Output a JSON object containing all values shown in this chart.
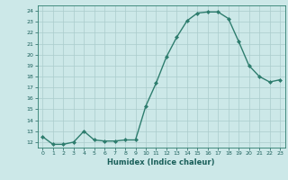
{
  "title": "",
  "xlabel": "Humidex (Indice chaleur)",
  "ylabel": "",
  "x": [
    0,
    1,
    2,
    3,
    4,
    5,
    6,
    7,
    8,
    9,
    10,
    11,
    12,
    13,
    14,
    15,
    16,
    17,
    18,
    19,
    20,
    21,
    22,
    23
  ],
  "y": [
    12.5,
    11.8,
    11.8,
    12.0,
    13.0,
    12.2,
    12.1,
    12.1,
    12.2,
    12.2,
    15.3,
    17.4,
    19.8,
    21.6,
    23.1,
    23.8,
    23.9,
    23.9,
    23.3,
    21.2,
    19.0,
    18.0,
    17.5,
    17.7
  ],
  "ylim": [
    11.5,
    24.5
  ],
  "xlim": [
    -0.5,
    23.5
  ],
  "yticks": [
    12,
    13,
    14,
    15,
    16,
    17,
    18,
    19,
    20,
    21,
    22,
    23,
    24
  ],
  "xticks": [
    0,
    1,
    2,
    3,
    4,
    5,
    6,
    7,
    8,
    9,
    10,
    11,
    12,
    13,
    14,
    15,
    16,
    17,
    18,
    19,
    20,
    21,
    22,
    23
  ],
  "line_color": "#2e7d6e",
  "marker_color": "#2e7d6e",
  "bg_color": "#cce8e8",
  "grid_color": "#aacccc",
  "axis_color": "#2e7d6e",
  "label_color": "#1a5f5a",
  "title_color": "#2e7d6e"
}
